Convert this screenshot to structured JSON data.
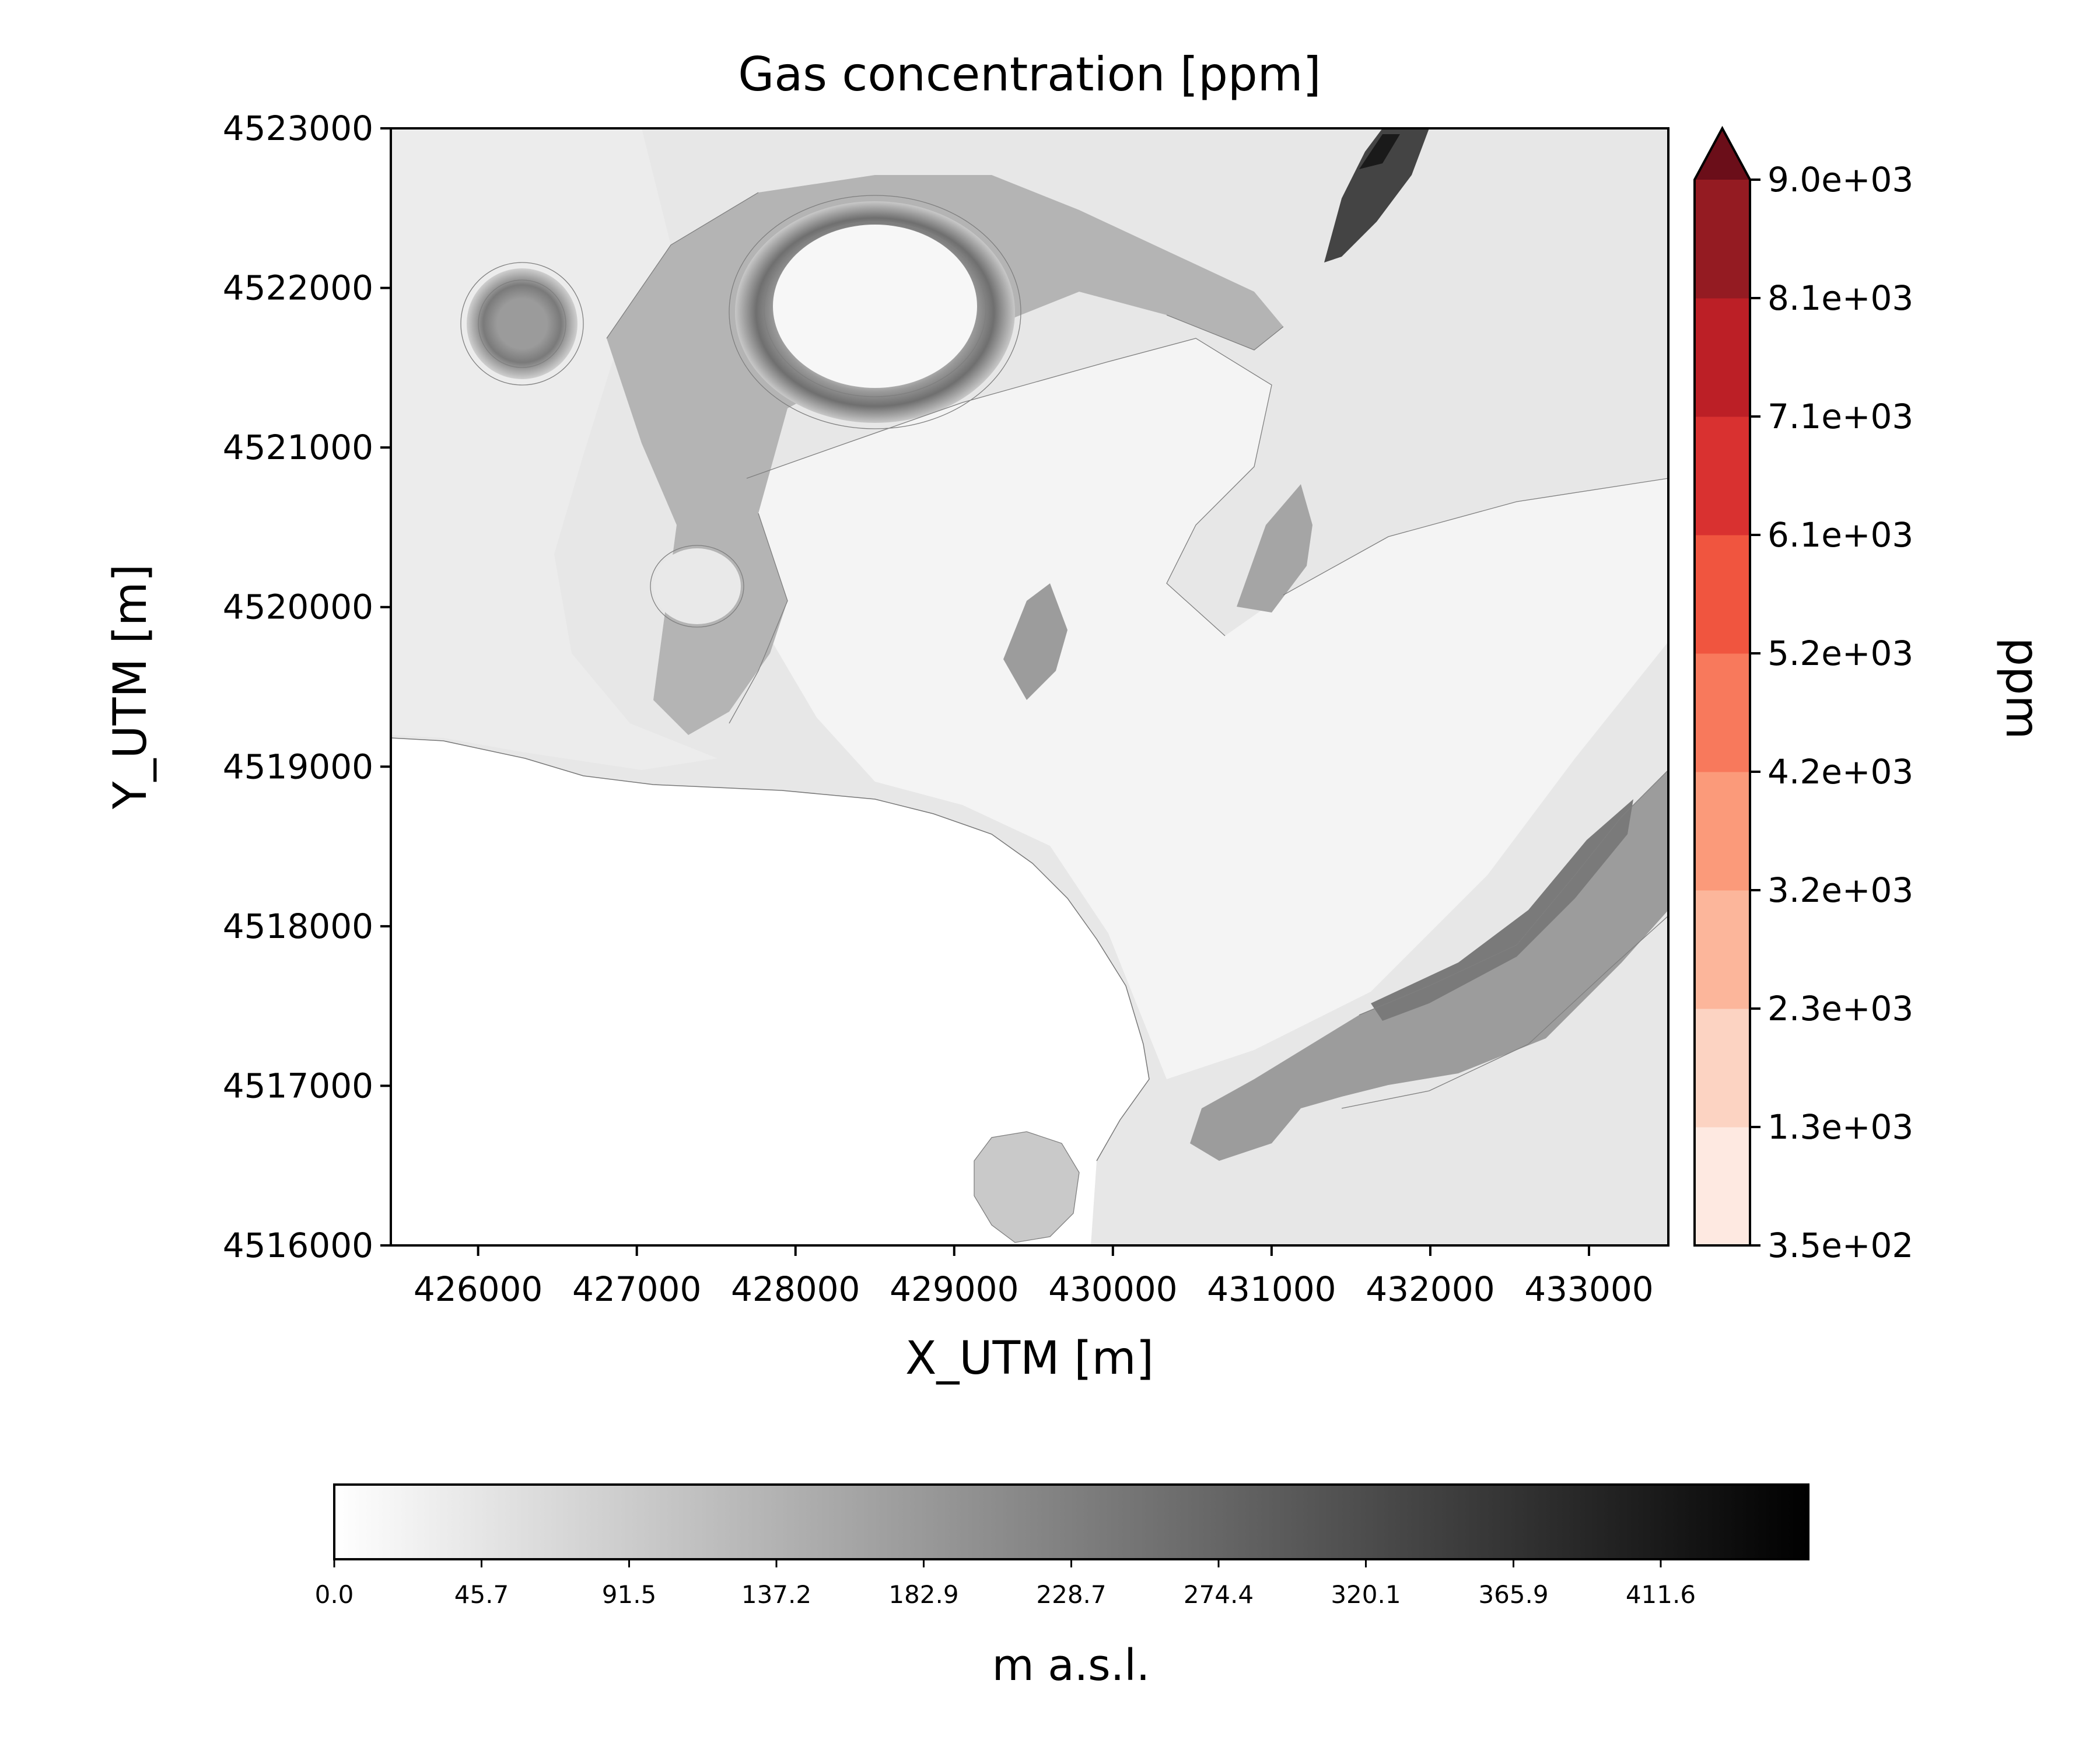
{
  "title": "Gas concentration [ppm]",
  "x_axis": {
    "label": "X_UTM [m]",
    "range": [
      425450,
      433500
    ],
    "ticks": [
      426000,
      427000,
      428000,
      429000,
      430000,
      431000,
      432000,
      433000
    ],
    "tick_labels": [
      "426000",
      "427000",
      "428000",
      "429000",
      "430000",
      "431000",
      "432000",
      "433000"
    ]
  },
  "y_axis": {
    "label": "Y_UTM [m]",
    "range": [
      4516000,
      4523000
    ],
    "ticks": [
      4516000,
      4517000,
      4518000,
      4519000,
      4520000,
      4521000,
      4522000,
      4523000
    ],
    "tick_labels": [
      "4516000",
      "4517000",
      "4518000",
      "4519000",
      "4520000",
      "4521000",
      "4522000",
      "4523000"
    ]
  },
  "ppm_colorbar": {
    "label": "ppm",
    "extend": "max",
    "tick_labels": [
      "3.5e+02",
      "1.3e+03",
      "2.3e+03",
      "3.2e+03",
      "4.2e+03",
      "5.2e+03",
      "6.1e+03",
      "7.1e+03",
      "8.1e+03",
      "9.0e+03"
    ],
    "colors": [
      "#fee9e1",
      "#fcd3c2",
      "#fcb69b",
      "#fb9a7a",
      "#f8795c",
      "#f0553f",
      "#d93130",
      "#bc1f26",
      "#941b22",
      "#6b0e19"
    ]
  },
  "elevation_colorbar": {
    "label": "m a.s.l.",
    "range": [
      0,
      457.4
    ],
    "tick_labels": [
      "0.0",
      "45.7",
      "91.5",
      "137.2",
      "182.9",
      "228.7",
      "274.4",
      "320.1",
      "365.9",
      "411.6"
    ],
    "colors": [
      "#ffffff",
      "#000000"
    ]
  },
  "map": {
    "basemap": "grayscale elevation shading with contour lines (hillshade-like)",
    "features": [
      "crater-ring-north",
      "crater-ring-west",
      "crater-east-small",
      "island-south",
      "ridge-east",
      "coastline"
    ]
  }
}
